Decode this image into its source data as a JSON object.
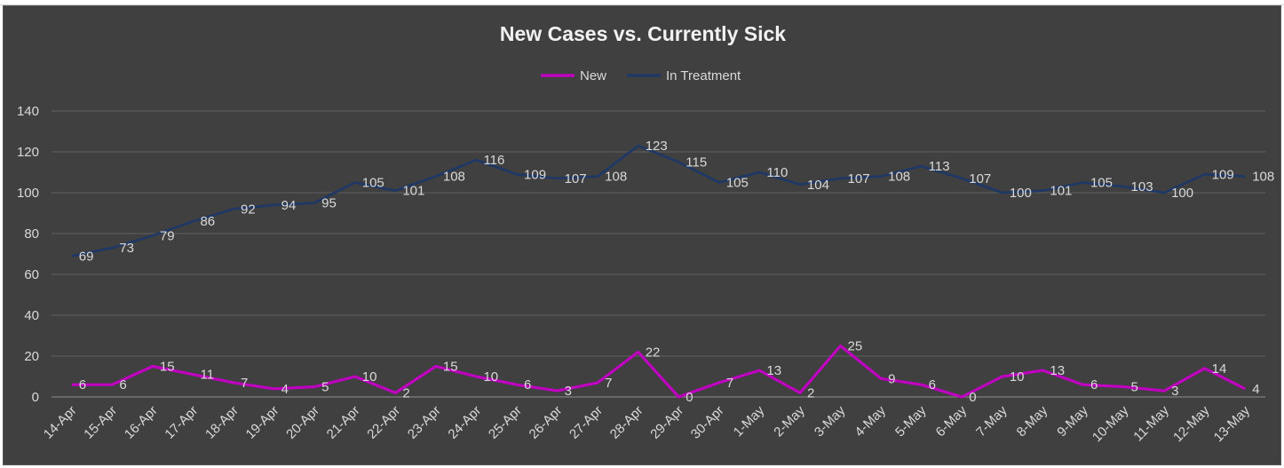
{
  "chart_data": {
    "type": "line",
    "title": "New Cases vs. Currently Sick",
    "xlabel": "",
    "ylabel": "",
    "ylim": [
      0,
      140
    ],
    "yticks": [
      0,
      20,
      40,
      60,
      80,
      100,
      120,
      140
    ],
    "grid": true,
    "legend_position": "top",
    "categories": [
      "14-Apr",
      "15-Apr",
      "16-Apr",
      "17-Apr",
      "18-Apr",
      "19-Apr",
      "20-Apr",
      "21-Apr",
      "22-Apr",
      "23-Apr",
      "24-Apr",
      "25-Apr",
      "26-Apr",
      "27-Apr",
      "28-Apr",
      "29-Apr",
      "30-Apr",
      "1-May",
      "2-May",
      "3-May",
      "4-May",
      "5-May",
      "6-May",
      "7-May",
      "8-May",
      "9-May",
      "10-May",
      "11-May",
      "12-May",
      "13-May"
    ],
    "series": [
      {
        "name": "New",
        "color": "#c000c0",
        "values": [
          6,
          6,
          15,
          11,
          7,
          4,
          5,
          10,
          2,
          15,
          10,
          6,
          3,
          7,
          22,
          0,
          7,
          13,
          2,
          25,
          9,
          6,
          0,
          10,
          13,
          6,
          5,
          3,
          14,
          4
        ]
      },
      {
        "name": "In Treatment",
        "color": "#203864",
        "values": [
          69,
          73,
          79,
          86,
          92,
          94,
          95,
          105,
          101,
          108,
          116,
          109,
          107,
          108,
          123,
          115,
          105,
          110,
          104,
          107,
          108,
          113,
          107,
          100,
          101,
          105,
          103,
          100,
          109,
          108
        ]
      }
    ]
  },
  "colors": {
    "background": "#404040",
    "gridline": "#595959",
    "text": "#d9d9d9"
  }
}
